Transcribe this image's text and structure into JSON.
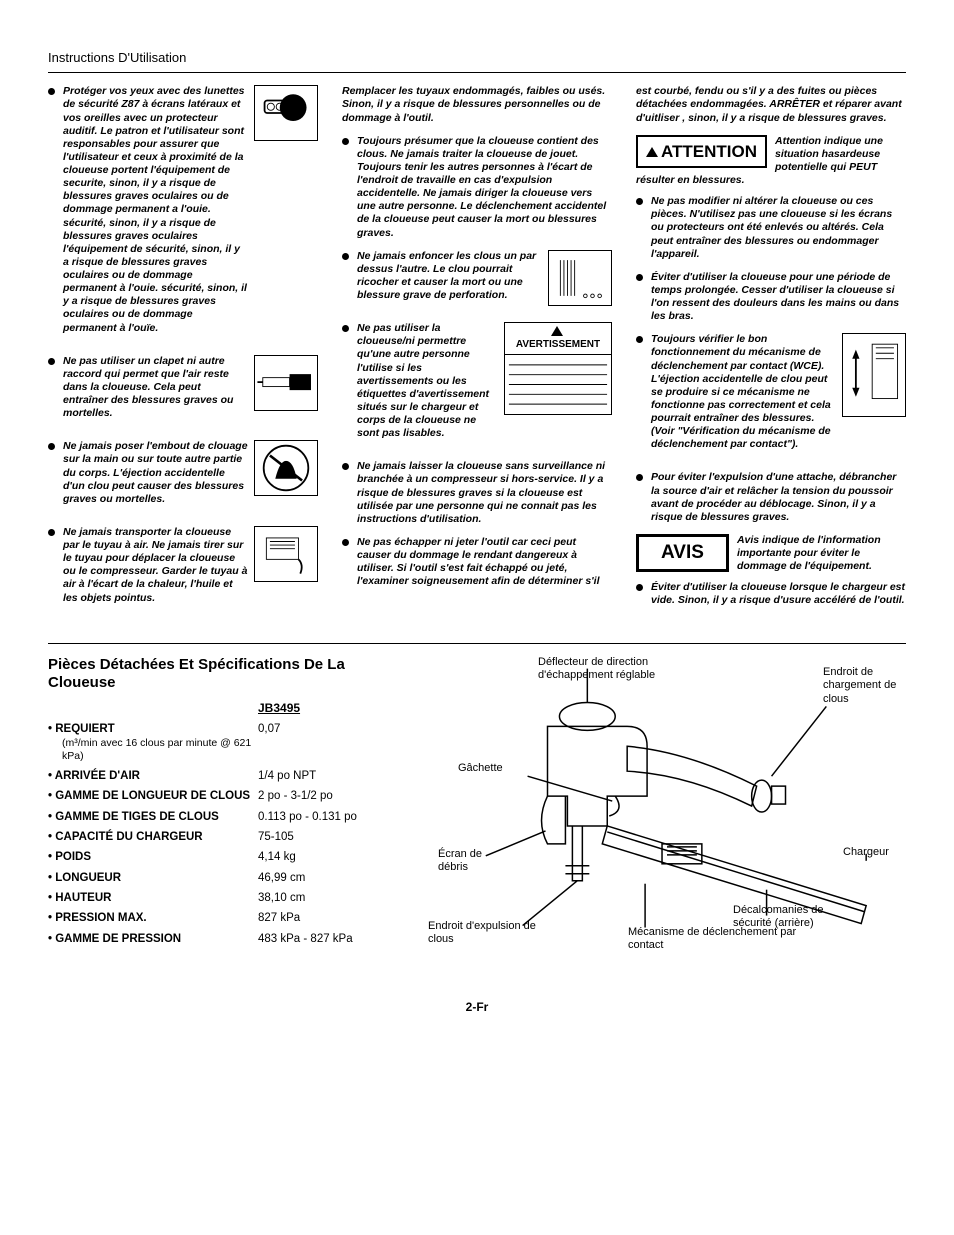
{
  "page_title": "Instructions D'Utilisation",
  "col1": {
    "b1": "Protéger vos yeux avec des lunettes de sécurité Z87 à écrans latéraux et vos oreilles avec un protecteur auditif. Le patron et l'utilisateur sont responsables pour assurer que l'utilisateur et ceux à proximité de la cloueuse portent l'équipement de securite, sinon, il y a risque de blessures graves oculaires ou de dommage permanent a l'ouie. sécurité, sinon, il y a risque de blessures graves oculaires l'équipement de sécurité, sinon, il y a risque de blessures graves oculaires ou de dommage permanent à l'ouie. sécurité, sinon, il y a risque de blessures graves oculaires ou de dommage permanent à l'ouïe.",
    "b2": "Ne pas utiliser un clapet ni autre raccord qui permet que l'air reste dans la cloueuse. Cela peut entraîner des blessures graves ou mortelles.",
    "b3": "Ne jamais poser l'embout de clouage sur la main ou sur toute autre partie du corps. L'éjection accidentelle d'un clou peut causer des blessures graves ou mortelles.",
    "b4": "Ne jamais transporter la cloueuse par le tuyau à air. Ne jamais tirer sur le tuyau pour déplacer la cloueuse ou le compresseur. Garder le tuyau à air à l'écart de la chaleur, l'huile et les objets pointus."
  },
  "col2": {
    "intro": "Remplacer les tuyaux endommagés, faibles ou usés. Sinon, il y a risque de blessures personnelles ou de dommage à l'outil.",
    "b1": "Toujours présumer que la cloueuse contient des clous. Ne jamais traiter la cloueuse de jouet. Toujours tenir les autres personnes à l'écart de l'endroit de travaille en cas d'expulsion accidentelle. Ne jamais diriger la cloueuse vers une autre personne. Le déclenchement accidentel de la cloueuse peut causer la mort ou blessures graves.",
    "b2": "Ne jamais enfoncer les clous un par dessus l'autre. Le clou pourrait ricocher et causer la mort ou une blessure grave de perforation.",
    "b3": "Ne pas utiliser la cloueuse/ni permettre qu'une autre personne l'utilise si les avertissements ou les étiquettes d'avertissement situés sur le chargeur et corps de la cloueuse ne sont pas lisables.",
    "warn_box": "AVERTISSEMENT",
    "b4": "Ne jamais laisser la cloueuse sans surveillance ni branchée à un compresseur si hors-service. Il y a risque de blessures graves si la cloueuse est utilisée par une personne qui ne connait pas les instructions d'utilisation.",
    "b5": "Ne pas échapper ni jeter l'outil car ceci peut causer du dommage le rendant dangereux à utiliser. Si l'outil s'est fait échappé ou jeté, l'examiner soigneusement afin de déterminer s'il"
  },
  "col3": {
    "intro": "est courbé, fendu ou s'il y a des fuites ou pièces détachées endommagées. ARRÊTER et réparer avant d'uitliser , sinon, il y a risque de blessures graves.",
    "attention_label": "ATTENTION",
    "attention_caption": "Attention indique une situation hasardeuse potentielle qui PEUT résulter en blessures.",
    "b1": "Ne pas modifier ni altérer la cloueuse ou ces pièces. N'utilisez pas une cloueuse si les écrans ou protecteurs ont été enlevés ou altérés. Cela peut entraîner des blessures ou endommager l'appareil.",
    "b2": "Éviter d'utiliser la cloueuse pour une période de temps prolongée. Cesser d'utiliser la cloueuse si l'on ressent des douleurs dans les mains ou dans les bras.",
    "b3": "Toujours vérifier le bon fonctionnement du mécanisme de déclenchement par contact (WCE). L'éjection accidentelle de clou peut se produire si ce mécanisme ne fonctionne pas correctement et cela pourrait entraîner des blessures. (Voir \"Vérification du mécanisme de déclenchement par contact\").",
    "b4": "Pour éviter l'expulsion d'une attache, débrancher la source d'air et relâcher la tension du poussoir avant de procéder au déblocage. Sinon, il y a risque de blessures graves.",
    "avis_label": "AVIS",
    "avis_caption": "Avis indique de l'information importante pour éviter le dommage de l'équipement.",
    "b5": "Éviter d'utiliser la cloueuse lorsque le chargeur est vide. Sinon, il y a risque d'usure accéléré de l'outil."
  },
  "specs": {
    "title": "Pièces Détachées Et Spécifications De La Cloueuse",
    "model": "JB3495",
    "rows": [
      {
        "label": "REQUIERT",
        "sub": "(m³/min avec 16 clous par minute @ 621 kPa)",
        "val": "0,07"
      },
      {
        "label": "ARRIVÉE D'AIR",
        "val": "1/4 po NPT"
      },
      {
        "label": "GAMME DE LONGUEUR DE CLOUS",
        "val": "2 po - 3-1/2 po"
      },
      {
        "label": "GAMME DE TIGES DE CLOUS",
        "val": "0.113 po - 0.131 po"
      },
      {
        "label": "CAPACITÉ DU CHARGEUR",
        "val": "75-105"
      },
      {
        "label": "POIDS",
        "val": "4,14 kg"
      },
      {
        "label": "LONGUEUR",
        "val": "46,99 cm"
      },
      {
        "label": "HAUTEUR",
        "val": "38,10 cm"
      },
      {
        "label": "PRESSION MAX.",
        "val": "827 kPa"
      },
      {
        "label": "GAMME DE PRESSION",
        "val": "483  kPa - 827 kPa"
      }
    ]
  },
  "diagram_labels": {
    "deflector": "Déflecteur de direction d'échappement réglable",
    "load_area": "Endroit de chargement de clous",
    "trigger": "Gâchette",
    "debris": "Écran de débris",
    "charger": "Chargeur",
    "decals": "Décalcomanies de sécurité (arrière)",
    "discharge": "Endroit d'expulsion de clous",
    "wce": "Mécanisme de déclenchement par contact"
  },
  "page_num": "2-Fr",
  "colors": {
    "text": "#000000",
    "bg": "#ffffff"
  }
}
